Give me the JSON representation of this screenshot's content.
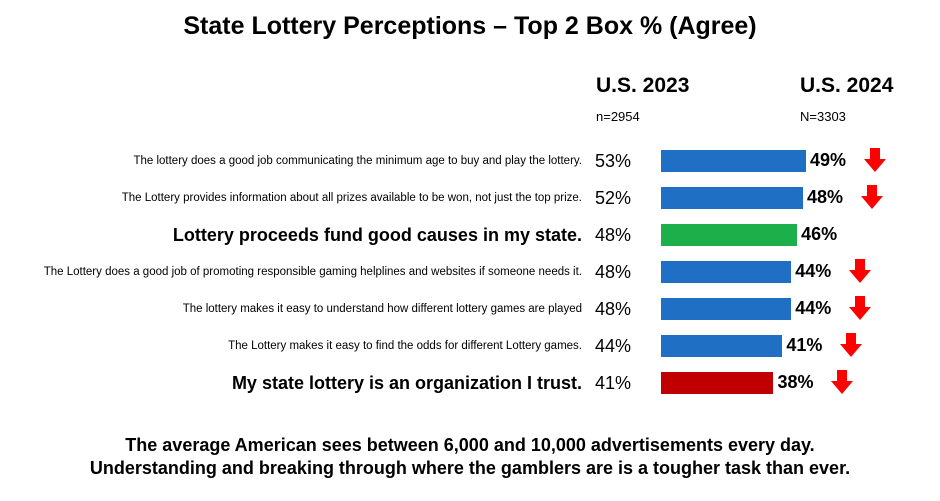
{
  "chart_data": {
    "type": "bar",
    "title": "State Lottery Perceptions – Top 2 Box % (Agree)",
    "columns": {
      "prev": {
        "label": "U.S. 2023",
        "n": "n=2954"
      },
      "curr": {
        "label": "U.S. 2024",
        "n": "N=3303"
      }
    },
    "rows": [
      {
        "label": "The lottery does a good job communicating the minimum age to buy and play the lottery.",
        "v2023": 53,
        "v2024": 49,
        "v2023_text": "53%",
        "v2024_text": "49%",
        "emphasis": false,
        "color": "#1f6fc5",
        "down": true
      },
      {
        "label": "The Lottery provides information about all prizes available to be won, not just the top prize.",
        "v2023": 52,
        "v2024": 48,
        "v2023_text": "52%",
        "v2024_text": "48%",
        "emphasis": false,
        "color": "#1f6fc5",
        "down": true
      },
      {
        "label": "Lottery proceeds fund good causes in my state.",
        "v2023": 48,
        "v2024": 46,
        "v2023_text": "48%",
        "v2024_text": "46%",
        "emphasis": true,
        "color": "#1db04a",
        "down": false
      },
      {
        "label": "The Lottery does a good job of promoting responsible gaming helplines and websites if someone needs it.",
        "v2023": 48,
        "v2024": 44,
        "v2023_text": "48%",
        "v2024_text": "44%",
        "emphasis": false,
        "color": "#1f6fc5",
        "down": true
      },
      {
        "label": "The lottery makes it easy to understand how different lottery games are played",
        "v2023": 48,
        "v2024": 44,
        "v2023_text": "48%",
        "v2024_text": "44%",
        "emphasis": false,
        "color": "#1f6fc5",
        "down": true
      },
      {
        "label": "The Lottery makes it easy to find the odds for different Lottery games.",
        "v2023": 44,
        "v2024": 41,
        "v2023_text": "44%",
        "v2024_text": "41%",
        "emphasis": false,
        "color": "#1f6fc5",
        "down": true
      },
      {
        "label": "My state lottery is an organization I trust.",
        "v2023": 41,
        "v2024": 38,
        "v2023_text": "41%",
        "v2024_text": "38%",
        "emphasis": true,
        "color": "#c00000",
        "down": true
      }
    ],
    "arrow_color": "#ff0000"
  },
  "footer": {
    "line1": "The average American sees between 6,000 and 10,000 advertisements every day.",
    "line2": "Understanding and breaking through where the gamblers are is a tougher task than ever."
  }
}
